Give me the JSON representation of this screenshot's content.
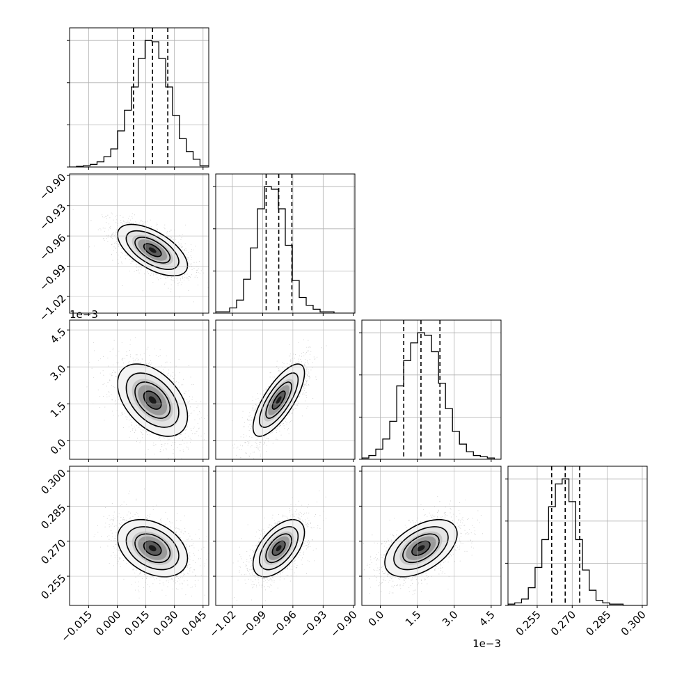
{
  "chart_data": {
    "type": "corner",
    "title": "",
    "parameters": [
      {
        "index": 0,
        "range": [
          -0.025,
          0.048
        ],
        "ticks": [
          -0.015,
          0.0,
          0.015,
          0.03,
          0.045
        ],
        "tick_labels": [
          "−0.015",
          "0.000",
          "0.015",
          "0.030",
          "0.045"
        ],
        "offset_label": "",
        "median": 0.0185,
        "q16": 0.0085,
        "q84": 0.0265
      },
      {
        "index": 1,
        "range": [
          -1.0365,
          -0.8985
        ],
        "ticks": [
          -1.02,
          -0.99,
          -0.96,
          -0.93,
          -0.9
        ],
        "tick_labels": [
          "−1.02",
          "−0.99",
          "−0.96",
          "−0.93",
          "−0.90"
        ],
        "offset_label": "",
        "median": -0.974,
        "q16": -0.9865,
        "q84": -0.961
      },
      {
        "index": 2,
        "range": [
          -0.00075,
          0.0049
        ],
        "ticks": [
          0.0,
          0.0015,
          0.003,
          0.0045
        ],
        "tick_labels": [
          "0.0",
          "1.5",
          "3.0",
          "4.5"
        ],
        "offset_label": "1e−3",
        "median": 0.00165,
        "q16": 0.00095,
        "q84": 0.00242
      },
      {
        "index": 3,
        "range": [
          0.2425,
          0.3021
        ],
        "ticks": [
          0.255,
          0.27,
          0.285,
          0.3
        ],
        "tick_labels": [
          "0.255",
          "0.270",
          "0.285",
          "0.300"
        ],
        "offset_label": "",
        "median": 0.267,
        "q16": 0.2612,
        "q84": 0.2732
      }
    ],
    "histograms": [
      {
        "param": 0,
        "bin_start": -0.025,
        "bin_width": 0.0036,
        "counts": [
          0,
          0.5,
          1,
          2,
          4,
          8,
          14,
          28,
          44,
          62,
          84,
          98,
          97,
          84,
          62,
          40,
          22,
          12,
          6,
          1,
          1
        ]
      },
      {
        "param": 1,
        "bin_start": -1.0365,
        "bin_width": 0.0069,
        "counts": [
          1,
          1,
          4,
          10,
          26,
          50,
          80,
          97,
          95,
          80,
          52,
          25,
          12,
          6,
          3,
          1,
          1,
          0,
          0,
          0
        ]
      },
      {
        "param": 2,
        "bin_start": -0.00075,
        "bin_width": 0.000283,
        "counts": [
          1,
          3,
          8,
          16,
          30,
          58,
          78,
          92,
          100,
          98,
          85,
          60,
          40,
          22,
          12,
          6,
          3,
          2,
          1,
          0
        ]
      },
      {
        "param": 3,
        "bin_start": 0.2425,
        "bin_width": 0.0029,
        "counts": [
          1,
          2,
          5,
          14,
          30,
          52,
          78,
          96,
          100,
          82,
          52,
          28,
          12,
          4,
          2,
          1,
          1,
          0,
          0,
          0,
          0
        ]
      }
    ],
    "pairs": [
      {
        "x": 0,
        "y": 1,
        "center": [
          0.0185,
          -0.974
        ],
        "sd": [
          0.009,
          0.0125
        ],
        "corr": -0.6
      },
      {
        "x": 0,
        "y": 2,
        "center": [
          0.0185,
          0.00165
        ],
        "sd": [
          0.009,
          0.00072
        ],
        "corr": -0.45
      },
      {
        "x": 1,
        "y": 2,
        "center": [
          -0.974,
          0.00165
        ],
        "sd": [
          0.0125,
          0.00072
        ],
        "corr": 0.75
      },
      {
        "x": 0,
        "y": 3,
        "center": [
          0.0185,
          0.267
        ],
        "sd": [
          0.009,
          0.006
        ],
        "corr": -0.35
      },
      {
        "x": 1,
        "y": 3,
        "center": [
          -0.974,
          0.267
        ],
        "sd": [
          0.0125,
          0.006
        ],
        "corr": 0.55
      },
      {
        "x": 2,
        "y": 3,
        "center": [
          0.00165,
          0.267
        ],
        "sd": [
          0.00072,
          0.006
        ],
        "corr": 0.5
      }
    ],
    "contour_levels_sigma": [
      0.5,
      1.0,
      1.5,
      2.0
    ],
    "grid": true,
    "xlabel": "",
    "ylabel": ""
  }
}
